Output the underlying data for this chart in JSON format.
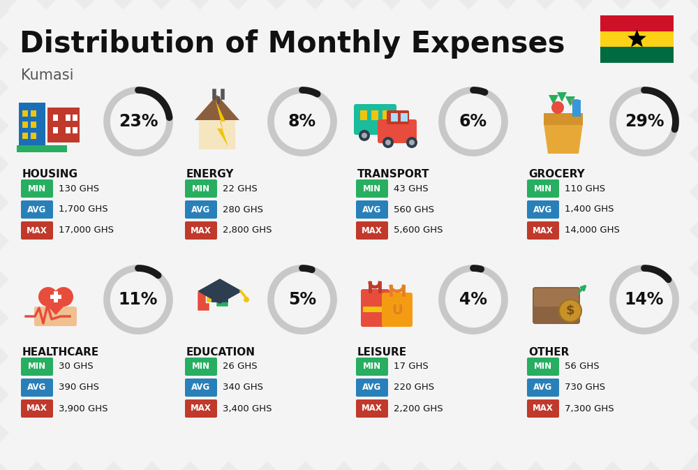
{
  "title": "Distribution of Monthly Expenses",
  "subtitle": "Kumasi",
  "background_color": "#ebebeb",
  "categories": [
    {
      "name": "HOUSING",
      "percent": 23,
      "min_val": "130 GHS",
      "avg_val": "1,700 GHS",
      "max_val": "17,000 GHS",
      "icon": "housing",
      "row": 0,
      "col": 0
    },
    {
      "name": "ENERGY",
      "percent": 8,
      "min_val": "22 GHS",
      "avg_val": "280 GHS",
      "max_val": "2,800 GHS",
      "icon": "energy",
      "row": 0,
      "col": 1
    },
    {
      "name": "TRANSPORT",
      "percent": 6,
      "min_val": "43 GHS",
      "avg_val": "560 GHS",
      "max_val": "5,600 GHS",
      "icon": "transport",
      "row": 0,
      "col": 2
    },
    {
      "name": "GROCERY",
      "percent": 29,
      "min_val": "110 GHS",
      "avg_val": "1,400 GHS",
      "max_val": "14,000 GHS",
      "icon": "grocery",
      "row": 0,
      "col": 3
    },
    {
      "name": "HEALTHCARE",
      "percent": 11,
      "min_val": "30 GHS",
      "avg_val": "390 GHS",
      "max_val": "3,900 GHS",
      "icon": "healthcare",
      "row": 1,
      "col": 0
    },
    {
      "name": "EDUCATION",
      "percent": 5,
      "min_val": "26 GHS",
      "avg_val": "340 GHS",
      "max_val": "3,400 GHS",
      "icon": "education",
      "row": 1,
      "col": 1
    },
    {
      "name": "LEISURE",
      "percent": 4,
      "min_val": "17 GHS",
      "avg_val": "220 GHS",
      "max_val": "2,200 GHS",
      "icon": "leisure",
      "row": 1,
      "col": 2
    },
    {
      "name": "OTHER",
      "percent": 14,
      "min_val": "56 GHS",
      "avg_val": "730 GHS",
      "max_val": "7,300 GHS",
      "icon": "other",
      "row": 1,
      "col": 3
    }
  ],
  "color_min": "#27ae60",
  "color_avg": "#2980b9",
  "color_max": "#c0392b",
  "arc_color": "#1a1a1a",
  "arc_bg_color": "#c8c8c8",
  "title_fontsize": 30,
  "subtitle_fontsize": 15,
  "category_fontsize": 11,
  "value_fontsize": 10,
  "percent_fontsize": 17,
  "flag_colors": [
    "#CE1126",
    "#FCD116",
    "#006B3F"
  ],
  "stripe_color": "#ffffff",
  "stripe_alpha": 0.45
}
